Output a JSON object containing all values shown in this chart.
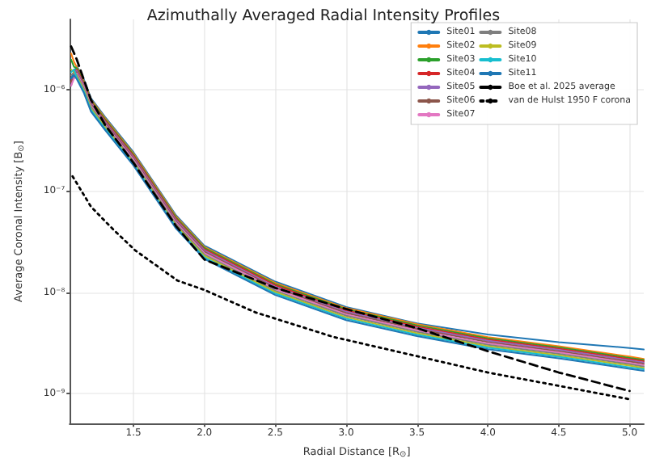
{
  "chart_data": {
    "type": "line",
    "title": "Azimuthally Averaged Radial Intensity Profiles",
    "xlabel": "Radial Distance [R$_{⊙}$]",
    "ylabel": "Average Coronal Intensity [B$_{⊙}$]",
    "log": "y",
    "grid": true,
    "legend": "top right",
    "marker": "none",
    "line_style": "solid",
    "xlim": [
      1.05,
      5.1
    ],
    "ylim": [
      5e-10,
      5e-06
    ],
    "xticks": [
      {
        "value": 1.5,
        "label": "1.5"
      },
      {
        "value": 2,
        "label": "2.0"
      },
      {
        "value": 2.5,
        "label": "2.5"
      },
      {
        "value": 3,
        "label": "3.0"
      },
      {
        "value": 3.5,
        "label": "3.5"
      },
      {
        "value": 4,
        "label": "4.0"
      },
      {
        "value": 4.5,
        "label": "4.5"
      },
      {
        "value": 5,
        "label": "5.0"
      }
    ],
    "yticks": [
      {
        "value": 1e-09,
        "label": "10⁻⁹"
      },
      {
        "value": 1e-08,
        "label": "10⁻⁸"
      },
      {
        "value": 1e-07,
        "label": "10⁻⁷"
      },
      {
        "value": 1e-06,
        "label": "10⁻⁶"
      }
    ],
    "x": [
      1.06,
      1.08,
      1.1,
      1.15,
      1.2,
      1.3,
      1.5,
      1.8,
      2.0,
      2.5,
      3.0,
      3.5,
      4.0,
      4.5,
      5.0,
      5.1
    ],
    "series": [
      {
        "name": "Site01",
        "color": "#1f77b4",
        "values": [
          1.3e-06,
          1.5e-06,
          1.73e-06,
          1.27e-06,
          8.28e-07,
          5.41e-07,
          2.42e-07,
          5.75e-08,
          2.88e-08,
          1.27e-08,
          7.13e-09,
          4.9e-09,
          3.8e-09,
          3.2e-09,
          2.8e-09,
          2.7e-09
        ]
      },
      {
        "name": "Site02",
        "color": "#ff7f0e",
        "values": [
          2.3e-06,
          1.9e-06,
          1.68e-06,
          1.23e-06,
          8.06e-07,
          5.26e-07,
          2.35e-07,
          5.6e-08,
          2.8e-08,
          1.23e-08,
          6.94e-09,
          4.82e-09,
          3.58e-09,
          2.91e-09,
          2.3e-09,
          2.18e-09
        ]
      },
      {
        "name": "Site03",
        "color": "#2ca02c",
        "values": [
          2e-06,
          1.7e-06,
          1.64e-06,
          1.2e-06,
          7.85e-07,
          5.12e-07,
          2.29e-07,
          5.45e-08,
          2.73e-08,
          1.2e-08,
          6.76e-09,
          4.69e-09,
          3.49e-09,
          2.83e-09,
          2.23e-09,
          2.13e-09
        ]
      },
      {
        "name": "Site04",
        "color": "#d62728",
        "values": [
          1.2e-06,
          1.4e-06,
          1.59e-06,
          1.17e-06,
          7.63e-07,
          4.98e-07,
          2.23e-07,
          5.3e-08,
          2.65e-08,
          1.17e-08,
          6.57e-09,
          4.56e-09,
          3.39e-09,
          2.76e-09,
          2.17e-09,
          2.07e-09
        ]
      },
      {
        "name": "Site05",
        "color": "#9467bd",
        "values": [
          1.1e-06,
          1.4e-06,
          1.55e-06,
          1.13e-06,
          7.42e-07,
          4.84e-07,
          2.16e-07,
          5.15e-08,
          2.58e-08,
          1.13e-08,
          6.39e-09,
          4.43e-09,
          3.3e-09,
          2.68e-09,
          2.11e-09,
          2.01e-09
        ]
      },
      {
        "name": "Site06",
        "color": "#8c564b",
        "values": [
          1.2e-06,
          1.3e-06,
          1.5e-06,
          1.1e-06,
          7.2e-07,
          4.7e-07,
          2.1e-07,
          5e-08,
          2.5e-08,
          1.1e-08,
          6.2e-09,
          4.3e-09,
          3.2e-09,
          2.6e-09,
          2.05e-09,
          1.95e-09
        ]
      },
      {
        "name": "Site07",
        "color": "#e377c2",
        "values": [
          1.1e-06,
          1.3e-06,
          1.46e-06,
          1.07e-06,
          6.98e-07,
          4.56e-07,
          2.04e-07,
          4.85e-08,
          2.43e-08,
          1.07e-08,
          6.01e-09,
          4.17e-09,
          3.1e-09,
          2.52e-09,
          1.99e-09,
          1.89e-09
        ]
      },
      {
        "name": "Site08",
        "color": "#7f7f7f",
        "values": [
          1.4e-06,
          1.5e-06,
          1.41e-06,
          1.03e-06,
          6.77e-07,
          4.42e-07,
          1.97e-07,
          4.7e-08,
          2.35e-08,
          1.03e-08,
          5.83e-09,
          4.04e-09,
          3.01e-09,
          2.44e-09,
          1.93e-09,
          1.83e-09
        ]
      },
      {
        "name": "Site09",
        "color": "#bcbd22",
        "values": [
          1.6e-06,
          1.5e-06,
          1.37e-06,
          1e-06,
          6.55e-07,
          4.28e-07,
          1.91e-07,
          4.55e-08,
          2.28e-08,
          1e-08,
          5.64e-09,
          3.91e-09,
          2.91e-09,
          2.37e-09,
          1.87e-09,
          1.77e-09
        ]
      },
      {
        "name": "Site10",
        "color": "#17becf",
        "values": [
          1.5e-06,
          1.6e-06,
          1.32e-06,
          9.68e-07,
          6.34e-07,
          4.14e-07,
          1.85e-07,
          4.4e-08,
          2.2e-08,
          9.68e-09,
          5.46e-09,
          3.78e-09,
          2.82e-09,
          2.29e-09,
          1.8e-09,
          1.72e-09
        ]
      },
      {
        "name": "Site11",
        "color": "#1f77b4",
        "values": [
          1.3e-06,
          1.4e-06,
          1.28e-06,
          9.35e-07,
          6.12e-07,
          4e-07,
          1.79e-07,
          4.25e-08,
          2.13e-08,
          9.35e-09,
          5.27e-09,
          3.66e-09,
          2.72e-09,
          2.21e-09,
          1.74e-09,
          1.66e-09
        ]
      },
      {
        "name": "Boe et al. 2025 average",
        "color": "#000000",
        "line_style": "dashed",
        "x": [
          1.06,
          1.1,
          1.2,
          1.3,
          1.5,
          1.8,
          2.0,
          2.5,
          3.0,
          3.5,
          4.0,
          4.5,
          5.0
        ],
        "values": [
          2.7e-06,
          2e-06,
          8e-07,
          4.5e-07,
          1.9e-07,
          4.5e-08,
          2.1e-08,
          1.1e-08,
          6.8e-09,
          4.4e-09,
          2.6e-09,
          1.6e-09,
          1.05e-09
        ]
      },
      {
        "name": "van de Hulst 1950 F corona",
        "color": "#000000",
        "line_style": "dotted",
        "x": [
          1.07,
          1.2,
          1.34,
          1.51,
          1.81,
          2.0,
          2.36,
          2.91,
          4.0,
          5.0
        ],
        "values": [
          1.4e-07,
          7e-08,
          4.4e-08,
          2.6e-08,
          1.3e-08,
          1.05e-08,
          6.3e-09,
          3.6e-09,
          1.6e-09,
          8.7e-10
        ]
      }
    ]
  }
}
